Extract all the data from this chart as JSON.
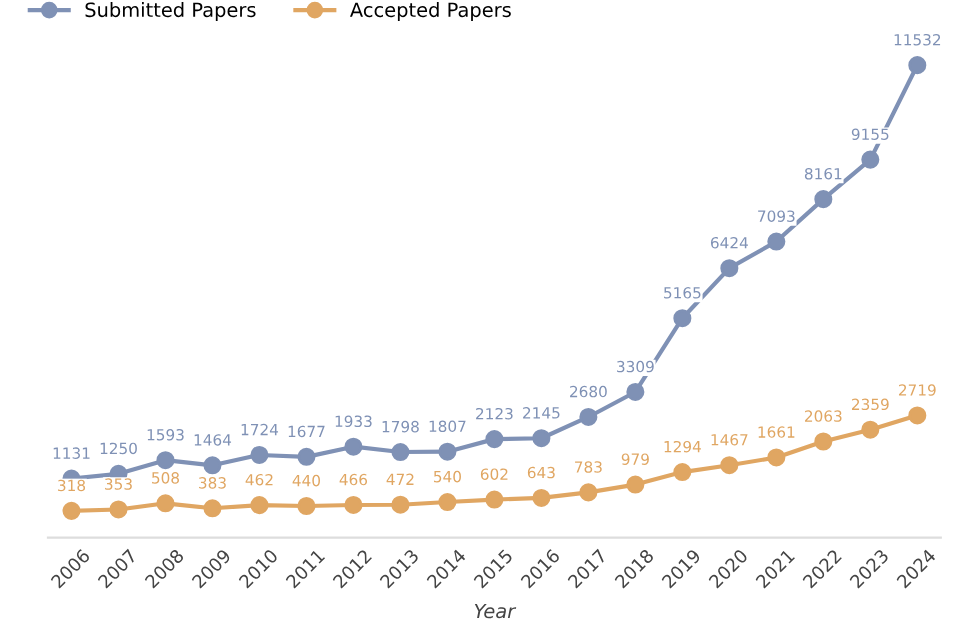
{
  "chart_data": {
    "type": "line",
    "xlabel": "Year",
    "categories": [
      "2006",
      "2007",
      "2008",
      "2009",
      "2010",
      "2011",
      "2012",
      "2013",
      "2014",
      "2015",
      "2016",
      "2017",
      "2018",
      "2019",
      "2020",
      "2021",
      "2022",
      "2023",
      "2024"
    ],
    "series": [
      {
        "name": "Submitted Papers",
        "color": "#7f91b5",
        "values": [
          1131,
          1250,
          1593,
          1464,
          1724,
          1677,
          1933,
          1798,
          1807,
          2123,
          2145,
          2680,
          3309,
          5165,
          6424,
          7093,
          8161,
          9155,
          11532
        ]
      },
      {
        "name": "Accepted Papers",
        "color": "#e0a662",
        "values": [
          318,
          353,
          508,
          383,
          462,
          440,
          466,
          472,
          540,
          602,
          643,
          783,
          979,
          1294,
          1467,
          1661,
          2063,
          2359,
          2719
        ]
      }
    ],
    "tick_labels": "x",
    "data_labels": true,
    "legend": "top left",
    "marker": "circle",
    "line_style": "solid",
    "grid": false
  }
}
